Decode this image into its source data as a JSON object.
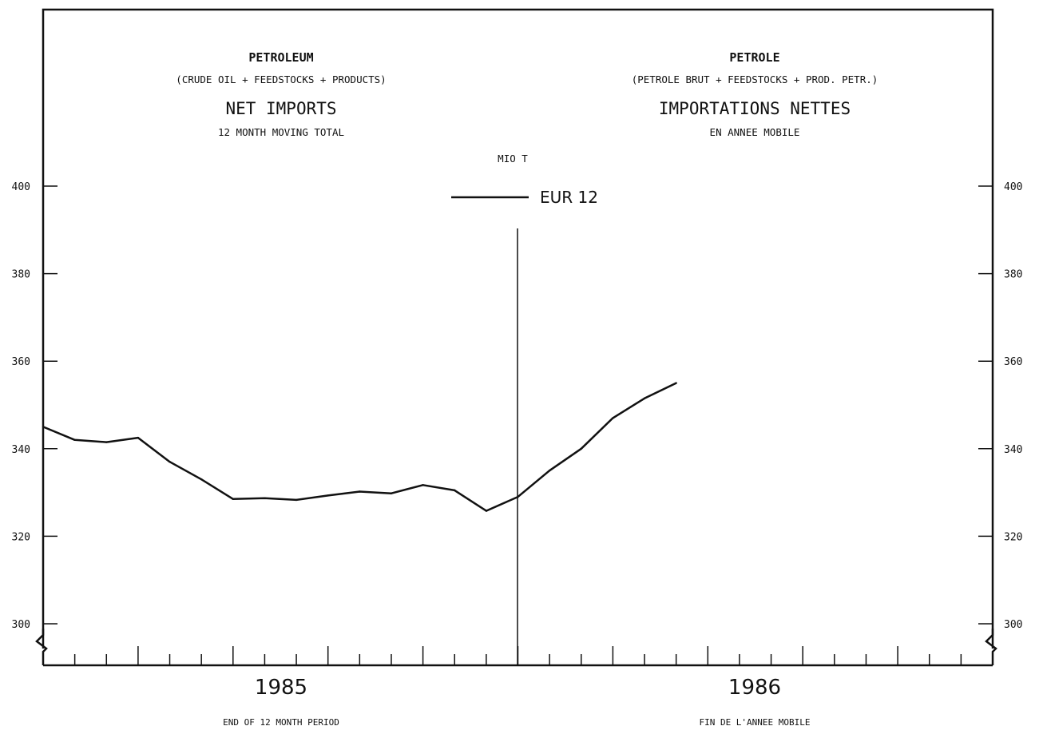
{
  "header_en": {
    "subject": "PETROLEUM",
    "scope": "(CRUDE OIL + FEEDSTOCKS + PRODUCTS)",
    "measure": "NET IMPORTS",
    "basis": "12 MONTH MOVING TOTAL"
  },
  "header_fr": {
    "subject": "PETROLE",
    "scope": "(PETROLE BRUT + FEEDSTOCKS + PROD. PETR.)",
    "measure": "IMPORTATIONS NETTES",
    "basis": "EN ANNEE MOBILE"
  },
  "unit": "MIO T",
  "footer_en": "END OF 12 MONTH PERIOD",
  "footer_fr": "FIN DE L'ANNEE MOBILE",
  "chart_data": {
    "type": "line",
    "x": [
      "1984-07",
      "1984-08",
      "1984-09",
      "1984-10",
      "1984-11",
      "1984-12",
      "1985-01",
      "1985-02",
      "1985-03",
      "1985-04",
      "1985-05",
      "1985-06",
      "1985-07",
      "1985-08",
      "1985-09",
      "1985-10",
      "1985-11",
      "1985-12",
      "1986-01",
      "1986-02",
      "1986-03",
      "1986-04",
      "1986-05",
      "1986-06",
      "1986-07",
      "1986-08",
      "1986-09",
      "1986-10",
      "1986-11",
      "1986-12"
    ],
    "series": [
      {
        "name": "EUR 12",
        "values": [
          345.0,
          342.0,
          341.5,
          342.5,
          337.0,
          333.0,
          328.5,
          328.7,
          328.3,
          329.3,
          330.2,
          329.8,
          331.7,
          330.5,
          325.8,
          329.0,
          335.0,
          340.0,
          347.0,
          351.5,
          355.0,
          null,
          null,
          null,
          null,
          null,
          null,
          null,
          null,
          null
        ]
      }
    ],
    "year_labels": [
      "1985",
      "1986"
    ],
    "yticks": [
      300,
      320,
      340,
      360,
      380,
      400
    ],
    "ylim": [
      290,
      400
    ],
    "axis_break": true,
    "grid": false,
    "legend": "top-center"
  }
}
